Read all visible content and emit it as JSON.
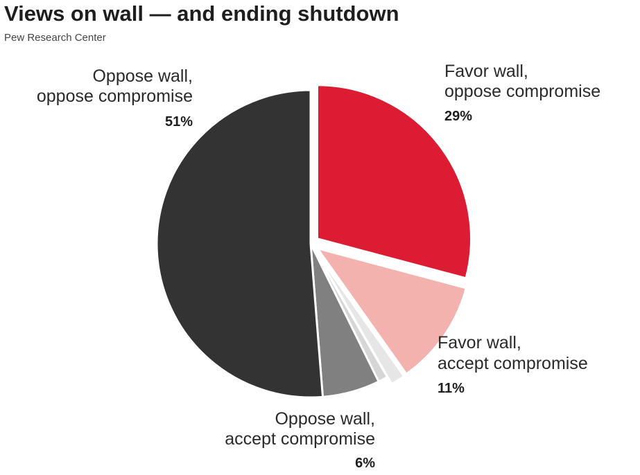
{
  "chart_data": {
    "type": "pie",
    "title": "Views on wall — and ending shutdown",
    "subtitle": "Pew Research Center",
    "slices": [
      {
        "line1": "Favor wall,",
        "line2": "oppose compromise",
        "value": 29,
        "value_label": "29%",
        "color": "#dc1c32",
        "exploded": true
      },
      {
        "line1": "Favor wall,",
        "line2": "accept compromise",
        "value": 11,
        "value_label": "11%",
        "color": "#f4b2ae",
        "exploded": true
      },
      {
        "value": 1.5,
        "color": "#e6e6e6",
        "exploded": true
      },
      {
        "value": 1,
        "color": "#d6d6d6",
        "exploded": false
      },
      {
        "line1": "Oppose wall,",
        "line2": "accept compromise",
        "value": 6,
        "value_label": "6%",
        "color": "#808080",
        "exploded": false
      },
      {
        "line1": "Oppose wall,",
        "line2": "oppose compromise",
        "value": 51,
        "value_label": "51%",
        "color": "#333333",
        "exploded": false
      }
    ]
  }
}
